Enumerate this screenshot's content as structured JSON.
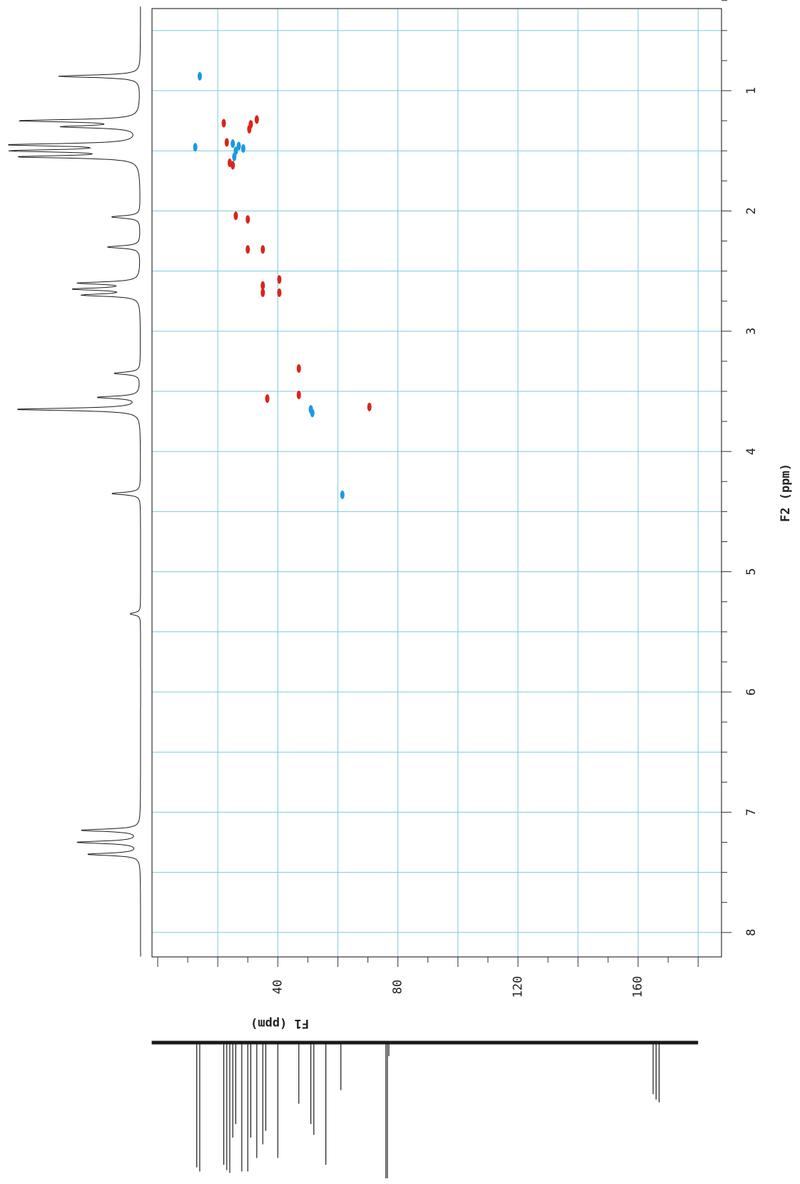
{
  "chart_data": {
    "type": "scatter",
    "subtype": "2D NMR HSQC (multiplicity-edited), plotted rotated 90 degrees",
    "f2_axis": {
      "label": "F2 (ppm)",
      "range": [
        0.3,
        8.2
      ],
      "ticks": [
        1,
        2,
        3,
        4,
        5,
        6,
        7,
        8
      ],
      "tick_labels": [
        "1",
        "2",
        "3",
        "4",
        "5",
        "6",
        "7",
        "8"
      ],
      "reversed": false
    },
    "f1_axis": {
      "label": "F1 (ppm)",
      "range": [
        0,
        190
      ],
      "ticks": [
        40,
        80,
        120,
        160
      ],
      "tick_labels": [
        "40",
        "80",
        "120",
        "160"
      ]
    },
    "grid": true,
    "grid_color": "#7ec8e0",
    "colors": {
      "positive": "#1a9ae0",
      "negative": "#d9261c",
      "trace": "#1a1a1a"
    },
    "series": [
      {
        "name": "",
        "color": "#1a9ae0",
        "points": [
          {
            "f2": 0.88,
            "f1": 14
          },
          {
            "f2": 1.47,
            "f1": 12.5
          },
          {
            "f2": 1.44,
            "f1": 25
          },
          {
            "f2": 1.46,
            "f1": 27
          },
          {
            "f2": 1.48,
            "f1": 28.5
          },
          {
            "f2": 1.5,
            "f1": 26
          },
          {
            "f2": 1.55,
            "f1": 25.5
          },
          {
            "f2": 3.65,
            "f1": 51
          },
          {
            "f2": 3.68,
            "f1": 51.5
          },
          {
            "f2": 4.36,
            "f1": 61.5
          }
        ]
      },
      {
        "name": "",
        "color": "#d9261c",
        "points": [
          {
            "f2": 1.27,
            "f1": 22
          },
          {
            "f2": 1.24,
            "f1": 33
          },
          {
            "f2": 1.28,
            "f1": 31
          },
          {
            "f2": 1.32,
            "f1": 30.5
          },
          {
            "f2": 1.43,
            "f1": 23
          },
          {
            "f2": 1.6,
            "f1": 24
          },
          {
            "f2": 1.62,
            "f1": 25
          },
          {
            "f2": 2.04,
            "f1": 26
          },
          {
            "f2": 2.07,
            "f1": 30
          },
          {
            "f2": 2.32,
            "f1": 30
          },
          {
            "f2": 2.32,
            "f1": 35
          },
          {
            "f2": 2.57,
            "f1": 40.5
          },
          {
            "f2": 2.62,
            "f1": 35
          },
          {
            "f2": 2.68,
            "f1": 35
          },
          {
            "f2": 2.68,
            "f1": 40.5
          },
          {
            "f2": 3.31,
            "f1": 47
          },
          {
            "f2": 3.53,
            "f1": 47
          },
          {
            "f2": 3.56,
            "f1": 36.5
          },
          {
            "f2": 3.63,
            "f1": 70.5
          }
        ]
      }
    ],
    "proton_trace": {
      "shift_ppm": [
        0.88,
        1.25,
        1.3,
        1.45,
        1.5,
        1.55,
        2.05,
        2.3,
        2.6,
        2.65,
        2.7,
        3.35,
        3.55,
        3.65,
        4.35,
        5.35,
        7.15,
        7.25,
        7.35
      ],
      "intensity": [
        0.62,
        0.9,
        0.55,
        0.97,
        0.92,
        0.88,
        0.22,
        0.25,
        0.45,
        0.48,
        0.42,
        0.2,
        0.32,
        0.95,
        0.22,
        0.08,
        0.45,
        0.48,
        0.4
      ]
    },
    "carbon_trace": {
      "shift_ppm": [
        13,
        14,
        22,
        23,
        24,
        25,
        26,
        28,
        30,
        31,
        33,
        35,
        36,
        40,
        47,
        51,
        52,
        56,
        61,
        76,
        76.5,
        77,
        165,
        166,
        167
      ],
      "intensity": [
        0.92,
        0.95,
        0.9,
        0.94,
        0.96,
        0.7,
        0.6,
        0.95,
        0.95,
        0.7,
        0.85,
        0.75,
        0.65,
        0.85,
        0.45,
        0.6,
        0.68,
        0.9,
        0.35,
        1.0,
        1.0,
        0.1,
        0.38,
        0.42,
        0.44
      ]
    }
  }
}
